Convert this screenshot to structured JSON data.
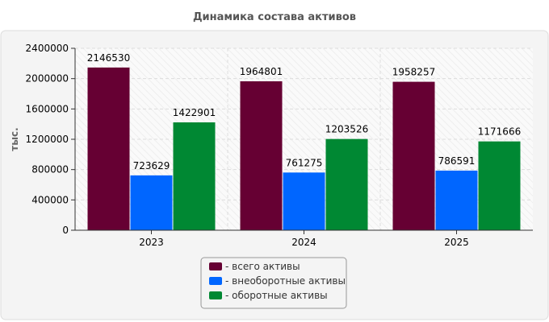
{
  "chart_data": {
    "type": "bar",
    "title": "Динамика состава активов",
    "ylabel": "тыс.",
    "xlabel": "",
    "categories": [
      "2023",
      "2024",
      "2025"
    ],
    "series": [
      {
        "name": "всего активы",
        "values": [
          2146530,
          1964801,
          1958257
        ],
        "color": "#660033"
      },
      {
        "name": "внеоборотные активы",
        "values": [
          723629,
          761275,
          786591
        ],
        "color": "#0066ff"
      },
      {
        "name": "оборотные активы",
        "values": [
          1422901,
          1203526,
          1171666
        ],
        "color": "#008833"
      }
    ],
    "ylim": [
      0,
      2400000
    ],
    "yticks": [
      0,
      400000,
      800000,
      1200000,
      1600000,
      2000000,
      2400000
    ],
    "grid": true,
    "legend_position": "bottom",
    "legend_prefix": "- "
  }
}
